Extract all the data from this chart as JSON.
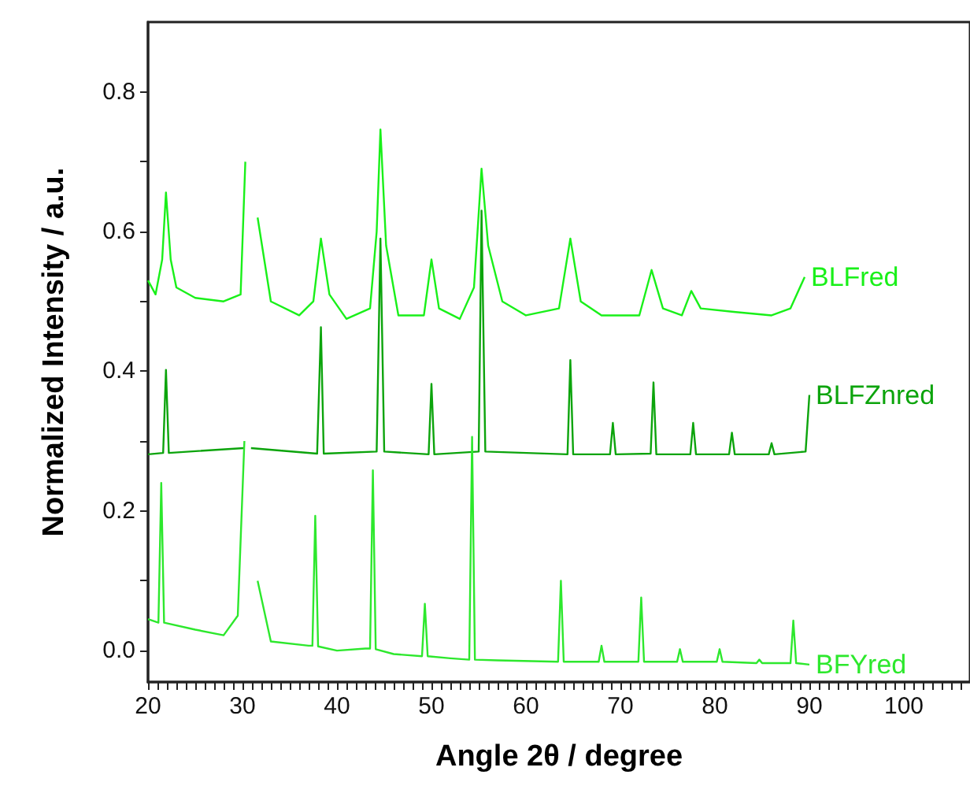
{
  "chart_data": {
    "type": "line",
    "xlabel": "Angle 2θ / degree",
    "ylabel": "Normalized Intensity / a.u.",
    "xlim": [
      20,
      107
    ],
    "ylim": [
      -0.045,
      0.9
    ],
    "xticks": [
      20,
      {
        "value": 21,
        "label": null
      },
      {
        "value": 22,
        "label": null
      },
      {
        "value": 23,
        "label": null
      },
      {
        "value": 24,
        "label": null
      },
      {
        "value": 25,
        "label": null
      },
      {
        "value": 26,
        "label": null
      },
      {
        "value": 27,
        "label": null
      },
      {
        "value": 28,
        "label": null
      },
      {
        "value": 29,
        "label": null
      },
      30,
      {
        "value": 31,
        "label": null
      },
      {
        "value": 32,
        "label": null
      },
      {
        "value": 33,
        "label": null
      },
      {
        "value": 34,
        "label": null
      },
      {
        "value": 35,
        "label": null
      },
      {
        "value": 36,
        "label": null
      },
      {
        "value": 37,
        "label": null
      },
      {
        "value": 38,
        "label": null
      },
      {
        "value": 39,
        "label": null
      },
      40,
      {
        "value": 41,
        "label": null
      },
      {
        "value": 42,
        "label": null
      },
      {
        "value": 43,
        "label": null
      },
      {
        "value": 44,
        "label": null
      },
      {
        "value": 45,
        "label": null
      },
      {
        "value": 46,
        "label": null
      },
      {
        "value": 47,
        "label": null
      },
      {
        "value": 48,
        "label": null
      },
      {
        "value": 49,
        "label": null
      },
      50,
      {
        "value": 51,
        "label": null
      },
      {
        "value": 52,
        "label": null
      },
      {
        "value": 53,
        "label": null
      },
      {
        "value": 54,
        "label": null
      },
      {
        "value": 55,
        "label": null
      },
      {
        "value": 56,
        "label": null
      },
      {
        "value": 57,
        "label": null
      },
      {
        "value": 58,
        "label": null
      },
      {
        "value": 59,
        "label": null
      },
      60,
      {
        "value": 61,
        "label": null
      },
      {
        "value": 62,
        "label": null
      },
      {
        "value": 63,
        "label": null
      },
      {
        "value": 64,
        "label": null
      },
      {
        "value": 65,
        "label": null
      },
      {
        "value": 66,
        "label": null
      },
      {
        "value": 67,
        "label": null
      },
      {
        "value": 68,
        "label": null
      },
      {
        "value": 69,
        "label": null
      },
      70,
      {
        "value": 71,
        "label": null
      },
      {
        "value": 72,
        "label": null
      },
      {
        "value": 73,
        "label": null
      },
      {
        "value": 74,
        "label": null
      },
      {
        "value": 75,
        "label": null
      },
      {
        "value": 76,
        "label": null
      },
      {
        "value": 77,
        "label": null
      },
      {
        "value": 78,
        "label": null
      },
      {
        "value": 79,
        "label": null
      },
      80,
      {
        "value": 81,
        "label": null
      },
      {
        "value": 82,
        "label": null
      },
      {
        "value": 83,
        "label": null
      },
      {
        "value": 84,
        "label": null
      },
      {
        "value": 85,
        "label": null
      },
      {
        "value": 86,
        "label": null
      },
      {
        "value": 87,
        "label": null
      },
      {
        "value": 88,
        "label": null
      },
      {
        "value": 89,
        "label": null
      },
      90,
      {
        "value": 91,
        "label": null
      },
      {
        "value": 92,
        "label": null
      },
      {
        "value": 93,
        "label": null
      },
      {
        "value": 94,
        "label": null
      },
      {
        "value": 95,
        "label": null
      },
      {
        "value": 96,
        "label": null
      },
      {
        "value": 97,
        "label": null
      },
      {
        "value": 98,
        "label": null
      },
      {
        "value": 99,
        "label": null
      },
      100,
      {
        "value": 101,
        "label": null
      },
      {
        "value": 102,
        "label": null
      },
      {
        "value": 103,
        "label": null
      },
      {
        "value": 104,
        "label": null
      },
      {
        "value": 105,
        "label": null
      },
      {
        "value": 106,
        "label": null
      }
    ],
    "yticks": [
      {
        "value": 0,
        "label": "0.0"
      },
      {
        "value": 0.1,
        "label": null
      },
      {
        "value": 0.2,
        "label": "0.2"
      },
      {
        "value": 0.3,
        "label": null
      },
      {
        "value": 0.4,
        "label": "0.4"
      },
      {
        "value": 0.5,
        "label": null
      },
      {
        "value": 0.6,
        "label": "0.6"
      },
      {
        "value": 0.7,
        "label": null
      },
      {
        "value": 0.8,
        "label": "0.8"
      }
    ],
    "marker": "none",
    "legend": false,
    "grid": false,
    "series": [
      {
        "name": "BLFred",
        "color": "#19f019",
        "x": [
          20,
          20.8,
          21.5,
          21.9,
          22.4,
          23,
          25,
          28,
          29.8,
          30.3,
          30.6,
          31,
          31.6,
          33,
          36,
          37.5,
          38.3,
          39.2,
          41,
          43.5,
          44.2,
          44.6,
          45.2,
          46.5,
          49.2,
          50,
          50.8,
          53,
          54.5,
          55.3,
          56,
          57.5,
          60,
          63.5,
          64.7,
          65.8,
          68,
          72,
          73.3,
          74.5,
          76.5,
          77.5,
          78.5,
          82,
          86,
          88,
          89.5
        ],
        "values": [
          0.53,
          0.51,
          0.56,
          0.656,
          0.56,
          0.52,
          0.505,
          0.5,
          0.51,
          0.7,
          null,
          null,
          0.62,
          0.5,
          0.48,
          0.5,
          0.59,
          0.51,
          0.475,
          0.49,
          0.6,
          0.746,
          0.58,
          0.48,
          0.48,
          0.56,
          0.49,
          0.475,
          0.52,
          0.69,
          0.58,
          0.5,
          0.48,
          0.49,
          0.59,
          0.5,
          0.48,
          0.48,
          0.545,
          0.49,
          0.48,
          0.515,
          0.49,
          0.485,
          0.48,
          0.49,
          0.535
        ]
      },
      {
        "name": "BLFZnred",
        "color": "#0ca40c",
        "x": [
          20,
          21.6,
          21.9,
          22.2,
          30.1,
          30.5,
          30.9,
          37.9,
          38.3,
          38.6,
          44.2,
          44.6,
          45,
          49.7,
          50,
          50.3,
          55,
          55.3,
          55.7,
          64.4,
          64.7,
          65,
          68.9,
          69.2,
          69.5,
          73.2,
          73.5,
          73.8,
          77.4,
          77.7,
          78,
          81.5,
          81.8,
          82.1,
          85.7,
          86,
          86.3,
          89.6,
          90
        ],
        "values": [
          0.281,
          0.283,
          0.402,
          0.283,
          0.29,
          null,
          0.29,
          0.282,
          0.463,
          0.282,
          0.285,
          0.59,
          0.285,
          0.281,
          0.382,
          0.281,
          0.285,
          0.63,
          0.285,
          0.281,
          0.416,
          0.281,
          0.281,
          0.326,
          0.281,
          0.282,
          0.384,
          0.281,
          0.281,
          0.326,
          0.281,
          0.281,
          0.312,
          0.281,
          0.281,
          0.297,
          0.281,
          0.285,
          0.366
        ]
      },
      {
        "name": "BFYred",
        "color": "#2de82d",
        "x": [
          20,
          21.1,
          21.4,
          21.7,
          25,
          28,
          29.5,
          30.2,
          30.6,
          31,
          31.6,
          33,
          37,
          37.4,
          37.7,
          38,
          40,
          43,
          43.5,
          43.8,
          44.1,
          46,
          49,
          49.3,
          49.6,
          52,
          54,
          54.3,
          54.6,
          57,
          63.4,
          63.7,
          64,
          67.7,
          68,
          68.3,
          71.9,
          72.2,
          72.5,
          76,
          76.3,
          76.6,
          80.2,
          80.5,
          80.8,
          84.4,
          84.7,
          85,
          88,
          88.3,
          88.6,
          90
        ],
        "values": [
          0.045,
          0.04,
          0.24,
          0.04,
          0.03,
          0.022,
          0.05,
          0.3,
          null,
          null,
          0.1,
          0.013,
          0.007,
          0.007,
          0.193,
          0.006,
          0,
          0.003,
          0.003,
          0.258,
          0.002,
          -0.005,
          -0.008,
          0.067,
          -0.008,
          -0.011,
          -0.013,
          0.306,
          -0.013,
          -0.014,
          -0.016,
          0.1,
          -0.016,
          -0.016,
          0.007,
          -0.016,
          -0.016,
          0.076,
          -0.016,
          -0.016,
          0.002,
          -0.016,
          -0.016,
          0.002,
          -0.016,
          -0.018,
          -0.013,
          -0.018,
          -0.018,
          0.043,
          -0.018,
          -0.02
        ]
      }
    ]
  }
}
